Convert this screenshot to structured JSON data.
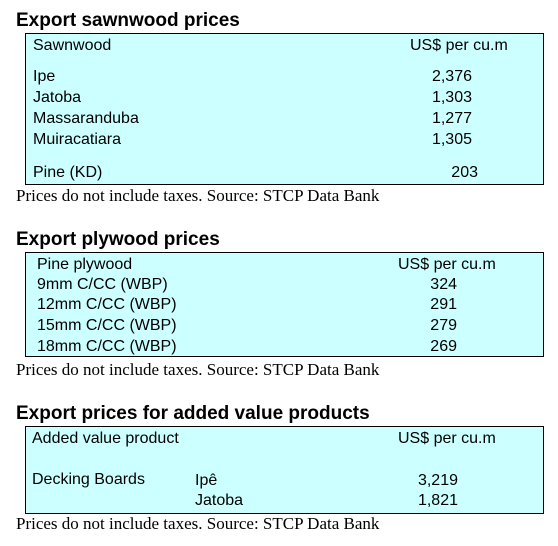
{
  "sawnwood": {
    "title": "Export sawnwood prices",
    "col_product": "Sawnwood",
    "col_price": "US$ per cu.m",
    "rows": [
      {
        "name": "Ipe",
        "price": "2,376"
      },
      {
        "name": "Jatoba",
        "price": "1,303"
      },
      {
        "name": "Massaranduba",
        "price": "1,277"
      },
      {
        "name": "Muiracatiara",
        "price": "1,305"
      },
      {
        "name": "Pine (KD)",
        "price": "203"
      }
    ],
    "note": "Prices do not include taxes. Source: STCP Data Bank"
  },
  "plywood": {
    "title": "Export plywood prices",
    "col_product": "Pine plywood",
    "col_price": "US$ per cu.m",
    "rows": [
      {
        "name": "9mm C/CC (WBP)",
        "price": "324"
      },
      {
        "name": "12mm C/CC (WBP)",
        "price": "291"
      },
      {
        "name": "15mm C/CC (WBP)",
        "price": "279"
      },
      {
        "name": "18mm C/CC (WBP)",
        "price": "269"
      }
    ],
    "note": "Prices do not include taxes. Source: STCP Data Bank"
  },
  "added_value": {
    "title": "Export prices for added value products",
    "col_product": "Added value product",
    "col_price": "US$ per cu.m",
    "product": "Decking Boards",
    "rows": [
      {
        "species": "Ipê",
        "price": "3,219"
      },
      {
        "species": "Jatoba",
        "price": "1,821"
      }
    ],
    "note": "Prices do not include taxes. Source: STCP Data Bank"
  }
}
